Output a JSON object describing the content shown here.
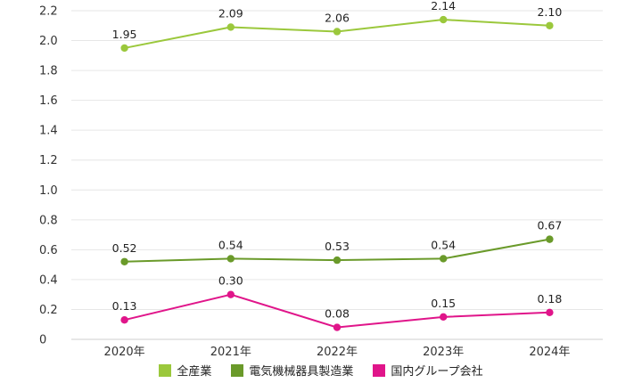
{
  "chart_data": {
    "type": "line",
    "categories": [
      "2020年",
      "2021年",
      "2022年",
      "2023年",
      "2024年"
    ],
    "ylim": [
      0,
      2.2
    ],
    "yticks": [
      "0",
      "0.2",
      "0.4",
      "0.6",
      "0.8",
      "1.0",
      "1.2",
      "1.4",
      "1.6",
      "1.8",
      "2.0",
      "2.2"
    ],
    "ytick_values": [
      0,
      0.2,
      0.4,
      0.6,
      0.8,
      1.0,
      1.2,
      1.4,
      1.6,
      1.8,
      2.0,
      2.2
    ],
    "grid": true,
    "legend_position": "bottom",
    "series": [
      {
        "name": "全産業",
        "color": "#9bc83c",
        "values": [
          1.95,
          2.09,
          2.06,
          2.14,
          2.1
        ],
        "labels": [
          "1.95",
          "2.09",
          "2.06",
          "2.14",
          "2.10"
        ]
      },
      {
        "name": "電気機械器具製造業",
        "color": "#6a9a2a",
        "values": [
          0.52,
          0.54,
          0.53,
          0.54,
          0.67
        ],
        "labels": [
          "0.52",
          "0.54",
          "0.53",
          "0.54",
          "0.67"
        ]
      },
      {
        "name": "国内グループ会社",
        "color": "#e0158a",
        "values": [
          0.13,
          0.3,
          0.08,
          0.15,
          0.18
        ],
        "labels": [
          "0.13",
          "0.30",
          "0.08",
          "0.15",
          "0.18"
        ]
      }
    ]
  }
}
